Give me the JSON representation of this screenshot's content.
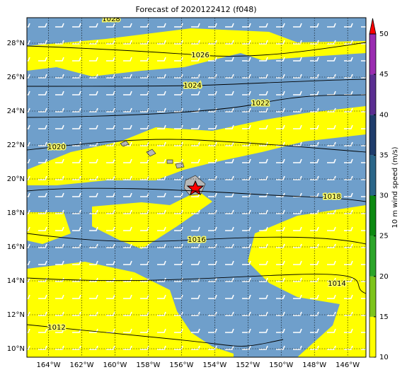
{
  "chart_data": {
    "type": "map",
    "title": "Forecast of 2020122412 (f048)",
    "xlim": [
      -165.3,
      -144.9
    ],
    "ylim": [
      9.5,
      29.5
    ],
    "xticks": [
      {
        "value": -164,
        "label": "164°W"
      },
      {
        "value": -162,
        "label": "162°W"
      },
      {
        "value": -160,
        "label": "160°W"
      },
      {
        "value": -158,
        "label": "158°W"
      },
      {
        "value": -156,
        "label": "156°W"
      },
      {
        "value": -154,
        "label": "154°W"
      },
      {
        "value": -152,
        "label": "152°W"
      },
      {
        "value": -150,
        "label": "150°W"
      },
      {
        "value": -148,
        "label": "148°W"
      },
      {
        "value": -146,
        "label": "146°W"
      }
    ],
    "yticks": [
      {
        "value": 10,
        "label": "10°N"
      },
      {
        "value": 12,
        "label": "12°N"
      },
      {
        "value": 14,
        "label": "14°N"
      },
      {
        "value": 16,
        "label": "16°N"
      },
      {
        "value": 18,
        "label": "18°N"
      },
      {
        "value": 20,
        "label": "20°N"
      },
      {
        "value": 22,
        "label": "22°N"
      },
      {
        "value": 24,
        "label": "24°N"
      },
      {
        "value": 26,
        "label": "26°N"
      },
      {
        "value": 28,
        "label": "28°N"
      }
    ],
    "grid": true,
    "contour_levels": [
      1028,
      1026,
      1024,
      1022,
      1020,
      1018,
      1016,
      1014,
      1012
    ],
    "colorbar": {
      "label": "10 m wind speed (m/s)",
      "lim": [
        10,
        50
      ],
      "ticks": [
        10,
        15,
        20,
        25,
        30,
        35,
        40,
        45,
        50
      ],
      "colors": [
        "#ffff00",
        "#7dc41c",
        "#2ca52a",
        "#0d8a12",
        "#2b6689",
        "#1f3d6c",
        "#5a2e91",
        "#9a2cb0"
      ],
      "extend_color": "#ff0000"
    }
  }
}
